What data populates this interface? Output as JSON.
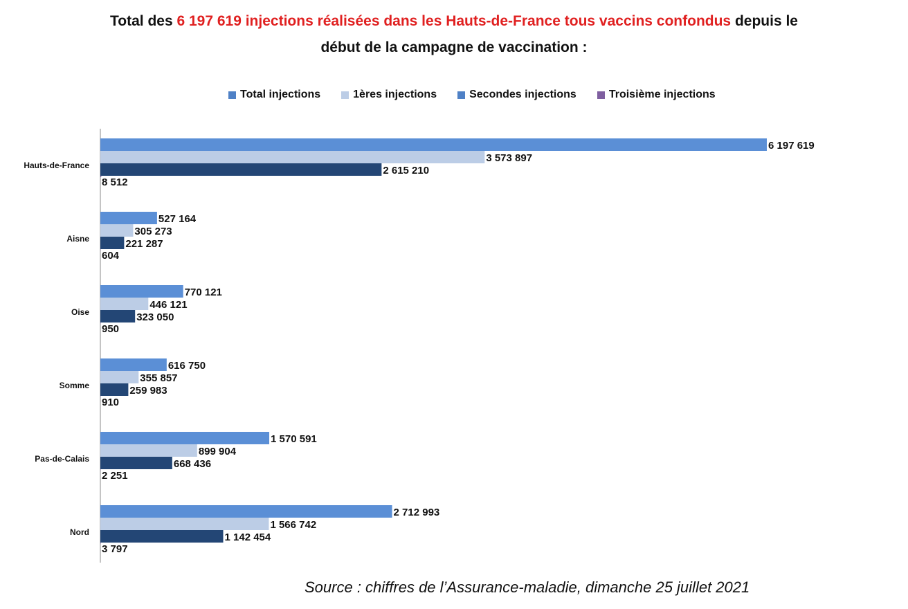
{
  "header": {
    "title_prefix": "Total des ",
    "title_highlight": "6 197 619 injections réalisées dans les Hauts-de-France tous vaccins confondus",
    "title_suffix_line1": " depuis le",
    "title_line2": "début de la campagne de vaccination :",
    "highlight_color": "#e02020"
  },
  "footer": {
    "source": "Source : chiffres de l’Assurance-maladie, dimanche 25 juillet 2021"
  },
  "chart_data": {
    "type": "bar",
    "orientation": "horizontal",
    "title": "",
    "xlabel": "",
    "ylabel": "",
    "categories": [
      "Hauts-de-France",
      "Aisne",
      "Oise",
      "Somme",
      "Pas-de-Calais",
      "Nord"
    ],
    "series": [
      {
        "name": "Total injections",
        "color": "#5b8fd6",
        "values": [
          6197619,
          527164,
          770121,
          616750,
          1570591,
          2712993
        ],
        "labels": [
          "6 197 619",
          "527 164",
          "770 121",
          "616 750",
          "1 570 591",
          "2 712 993"
        ]
      },
      {
        "name": "1ères injections",
        "color": "#bccde6",
        "values": [
          3573897,
          305273,
          446121,
          355857,
          899904,
          1566742
        ],
        "labels": [
          "3 573 897",
          "305 273",
          "446 121",
          "355 857",
          "899 904",
          "1 566 742"
        ]
      },
      {
        "name": "Secondes injections",
        "color": "#234675",
        "values": [
          2615210,
          221287,
          323050,
          259983,
          668436,
          1142454
        ],
        "labels": [
          "2 615 210",
          "221 287",
          "323 050",
          "259 983",
          "668 436",
          "1 142 454"
        ]
      },
      {
        "name": "Troisième injections",
        "color": "#7f5fa0",
        "values": [
          8512,
          604,
          950,
          910,
          2251,
          3797
        ],
        "labels": [
          "8 512",
          "604",
          "950",
          "910",
          "2 251",
          "3 797"
        ]
      }
    ],
    "legend_colors": [
      "#4f81c6",
      "#bccde6",
      "#4f81c6",
      "#7f5fa0"
    ],
    "xlim": [
      0,
      6197619
    ],
    "legend_position": "top",
    "grid": false
  }
}
